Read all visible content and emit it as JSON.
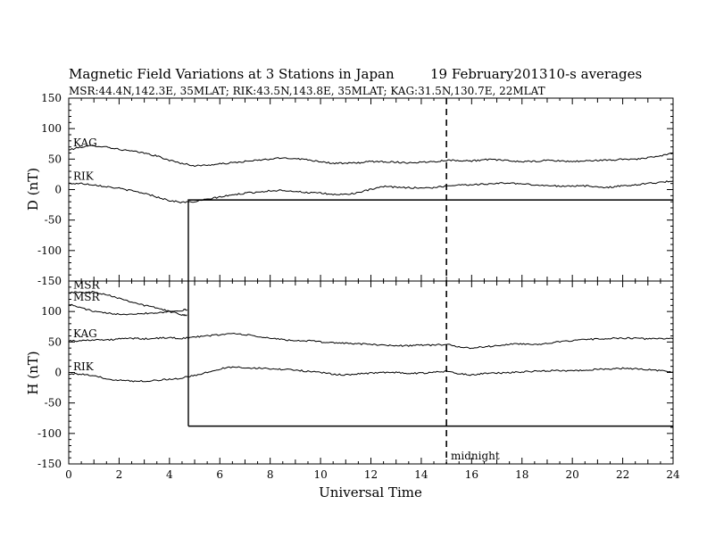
{
  "chart_data": [
    {
      "type": "line",
      "title": "Magnetic Field Variations at 3 Stations in Japan",
      "date": "19 February2013",
      "averaging": "10-s averages",
      "subtitle": "MSR:44.4N,142.3E, 35MLAT;  RIK:43.5N,143.8E, 35MLAT;  KAG:31.5N,130.7E, 22MLAT",
      "ylabel": "D (nT)",
      "xlim": [
        0,
        24
      ],
      "ylim": [
        -150,
        150
      ],
      "yticks": [
        150,
        100,
        50,
        0,
        -50,
        -100,
        -150
      ],
      "ytick_labels": [
        "150",
        "100",
        "50",
        "0",
        "-50",
        "-100",
        "-150"
      ],
      "series": [
        {
          "name": "KAG",
          "x": [
            0,
            0.5,
            1,
            1.5,
            2,
            2.5,
            3,
            3.5,
            4,
            4.5,
            5,
            5.5,
            6,
            6.5,
            7,
            7.5,
            8,
            8.5,
            9,
            9.5,
            10,
            10.5,
            11,
            11.5,
            12,
            12.5,
            13,
            13.5,
            14,
            14.5,
            15,
            15.5,
            16,
            16.5,
            17,
            17.5,
            18,
            18.5,
            19,
            19.5,
            20,
            20.5,
            21,
            21.5,
            22,
            22.5,
            23,
            23.5,
            24
          ],
          "values": [
            65,
            70,
            72,
            70,
            66,
            63,
            60,
            55,
            48,
            43,
            39,
            40,
            42,
            44,
            46,
            48,
            50,
            52,
            51,
            49,
            46,
            43,
            43,
            44,
            46,
            46,
            45,
            44,
            45,
            46,
            48,
            48,
            47,
            49,
            49,
            47,
            46,
            46,
            48,
            47,
            46,
            47,
            48,
            48,
            50,
            50,
            52,
            55,
            60
          ]
        },
        {
          "name": "RIK",
          "x": [
            0,
            0.5,
            1,
            1.5,
            2,
            2.5,
            3,
            3.5,
            4,
            4.5,
            5,
            5.5,
            6,
            6.5,
            7,
            7.5,
            8,
            8.5,
            9,
            9.5,
            10,
            10.5,
            11,
            11.5,
            12,
            12.5,
            13,
            13.5,
            14,
            14.5,
            15,
            15.5,
            16,
            16.5,
            17,
            17.5,
            18,
            18.5,
            19,
            19.5,
            20,
            20.5,
            21,
            21.5,
            22,
            22.5,
            23,
            23.5,
            24
          ],
          "values": [
            10,
            10,
            8,
            5,
            2,
            -2,
            -6,
            -12,
            -18,
            -21,
            -20,
            -16,
            -12,
            -9,
            -6,
            -4,
            -2,
            -1,
            -3,
            -5,
            -6,
            -8,
            -8,
            -5,
            0,
            5,
            4,
            3,
            3,
            3,
            6,
            8,
            8,
            9,
            10,
            11,
            9,
            8,
            6,
            6,
            6,
            6,
            4,
            4,
            6,
            8,
            10,
            12,
            14
          ]
        }
      ]
    },
    {
      "type": "line",
      "ylabel": "H (nT)",
      "xlabel": "Universal Time",
      "xlim": [
        0,
        24
      ],
      "ylim": [
        -150,
        150
      ],
      "xticks": [
        0,
        2,
        4,
        6,
        8,
        10,
        12,
        14,
        16,
        18,
        20,
        22,
        24
      ],
      "xtick_labels": [
        "0",
        "2",
        "4",
        "6",
        "8",
        "10",
        "12",
        "14",
        "16",
        "18",
        "20",
        "22",
        "24"
      ],
      "yticks": [
        150,
        100,
        50,
        0,
        -50,
        -100,
        -150
      ],
      "ytick_labels": [
        "150",
        "100",
        "50",
        "0",
        "-50",
        "-100",
        "-150"
      ],
      "series": [
        {
          "name": "MSR",
          "x": [
            0,
            0.5,
            1,
            1.5,
            2,
            2.5,
            3,
            3.5,
            4,
            4.5,
            4.7
          ],
          "values": [
            132,
            131,
            132,
            128,
            122,
            116,
            110,
            106,
            100,
            95,
            94
          ]
        },
        {
          "name": "MSR",
          "x": [
            0,
            0.5,
            1,
            1.5,
            2,
            2.5,
            3,
            3.5,
            4,
            4.5,
            4.7
          ],
          "values": [
            112,
            106,
            100,
            97,
            96,
            96,
            97,
            98,
            100,
            102,
            103
          ]
        },
        {
          "name": "KAG",
          "x": [
            0,
            0.5,
            1,
            1.5,
            2,
            2.5,
            3,
            3.5,
            4,
            4.5,
            5,
            5.5,
            6,
            6.5,
            7,
            7.5,
            8,
            8.5,
            9,
            9.5,
            10,
            10.5,
            11,
            11.5,
            12,
            12.5,
            13,
            13.5,
            14,
            14.5,
            15,
            15.5,
            16,
            16.5,
            17,
            17.5,
            18,
            18.5,
            19,
            19.5,
            20,
            20.5,
            21,
            21.5,
            22,
            22.5,
            23,
            23.5,
            24
          ],
          "values": [
            52,
            52,
            54,
            53,
            55,
            56,
            55,
            56,
            57,
            56,
            58,
            60,
            62,
            64,
            62,
            59,
            56,
            54,
            52,
            52,
            50,
            49,
            48,
            47,
            46,
            45,
            44,
            44,
            45,
            45,
            46,
            42,
            40,
            42,
            44,
            46,
            47,
            46,
            48,
            50,
            52,
            54,
            55,
            56,
            56,
            56,
            55,
            56,
            55
          ]
        },
        {
          "name": "RIK",
          "x": [
            0,
            0.5,
            1,
            1.5,
            2,
            2.5,
            3,
            3.5,
            4,
            4.5,
            5,
            5.5,
            6,
            6.5,
            7,
            7.5,
            8,
            8.5,
            9,
            9.5,
            10,
            10.5,
            11,
            11.5,
            12,
            12.5,
            13,
            13.5,
            14,
            14.5,
            15,
            15.5,
            16,
            16.5,
            17,
            17.5,
            18,
            18.5,
            19,
            19.5,
            20,
            20.5,
            21,
            21.5,
            22,
            22.5,
            23,
            23.5,
            24
          ],
          "values": [
            -2,
            -3,
            -6,
            -10,
            -13,
            -14,
            -14,
            -13,
            -11,
            -9,
            -5,
            0,
            6,
            9,
            8,
            7,
            6,
            5,
            4,
            2,
            0,
            -3,
            -4,
            -2,
            -1,
            0,
            0,
            -2,
            -1,
            0,
            2,
            -2,
            -4,
            -2,
            -1,
            0,
            1,
            2,
            3,
            3,
            3,
            4,
            5,
            6,
            7,
            6,
            5,
            3,
            1
          ]
        }
      ]
    }
  ],
  "annotations": {
    "midnight_label": "midnight",
    "midnight_x": 15
  }
}
